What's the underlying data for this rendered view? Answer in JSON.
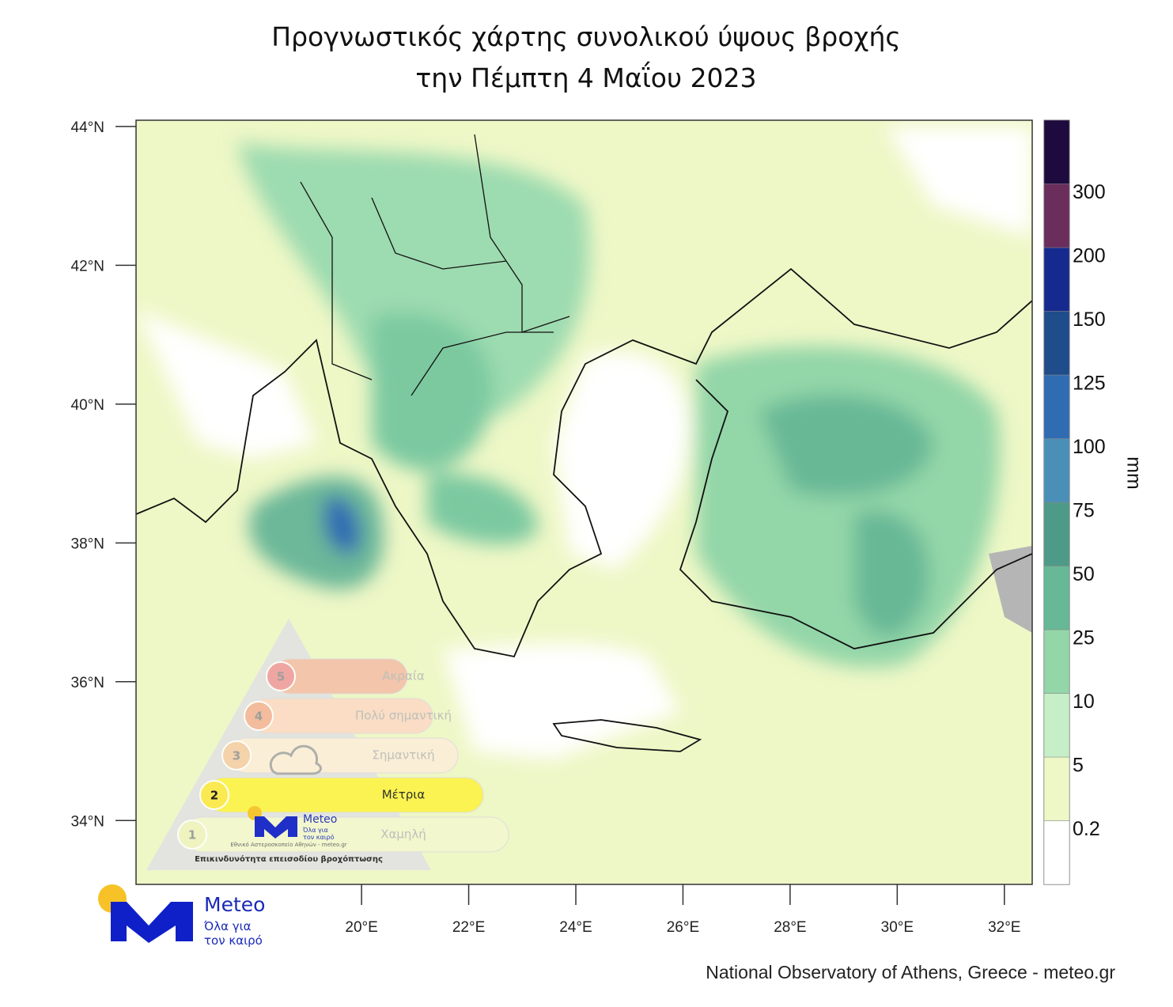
{
  "title": [
    "Προγνωστικός χάρτης συνολικού ύψους βροχής",
    "την Πέμπτη 4 Μαΐου 2023"
  ],
  "map": {
    "xlim": [
      15.79,
      32.52
    ],
    "ylim": [
      33.08,
      44.09
    ],
    "xticks": [
      {
        "value": 20,
        "label": "20°E"
      },
      {
        "value": 22,
        "label": "22°E"
      },
      {
        "value": 24,
        "label": "24°E"
      },
      {
        "value": 26,
        "label": "26°E"
      },
      {
        "value": 28,
        "label": "28°E"
      },
      {
        "value": 30,
        "label": "30°E"
      },
      {
        "value": 32,
        "label": "32°E"
      }
    ],
    "yticks": [
      {
        "value": 44,
        "label": "44°N"
      },
      {
        "value": 42,
        "label": "42°N"
      },
      {
        "value": 40,
        "label": "40°N"
      },
      {
        "value": 38,
        "label": "38°N"
      },
      {
        "value": 36,
        "label": "36°N"
      },
      {
        "value": 34,
        "label": "34°N"
      }
    ]
  },
  "legend": {
    "unit": "mm",
    "levels": [
      0.2,
      5,
      10,
      25,
      50,
      75,
      100,
      125,
      150,
      200,
      300
    ],
    "colors": [
      "#ffffff",
      "#eef7c6",
      "#c6efc8",
      "#93d6a8",
      "#67b896",
      "#4e9a88",
      "#4a8fb8",
      "#2f6cb2",
      "#1f4c8a",
      "#15298e",
      "#6a2d5c",
      "#1e0a3e"
    ]
  },
  "risk": {
    "levels": [
      {
        "level": 5,
        "label": "Ακραία"
      },
      {
        "level": 4,
        "label": "Πολύ σημαντική"
      },
      {
        "level": 3,
        "label": "Σημαντική"
      },
      {
        "level": 2,
        "label": "Μέτρια"
      },
      {
        "level": 1,
        "label": "Χαμηλή"
      }
    ],
    "caption": "Επικινδυνότητα επεισοδίου βροχόπτωσης",
    "logo_name": "Meteo",
    "logo_slogan": [
      "Όλα για",
      "τον καιρό"
    ],
    "logo_org": "Εθνικό Αστεροσκοπείο Αθηνών - meteo.gr"
  },
  "logo": {
    "name": "Meteo",
    "slogan": [
      "Όλα για",
      "τον καιρό"
    ]
  },
  "credit": "National Observatory of Athens, Greece - meteo.gr"
}
